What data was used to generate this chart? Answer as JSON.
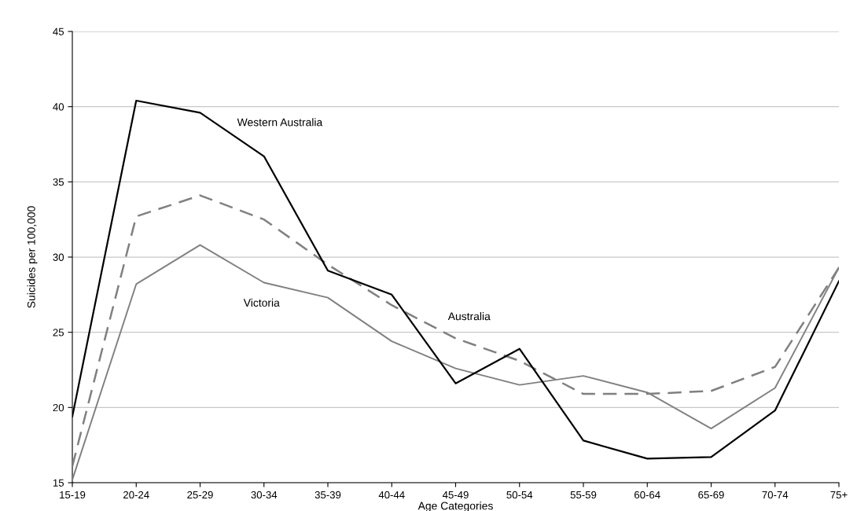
{
  "chart_data": {
    "type": "line",
    "xlabel": "Age Categories",
    "ylabel": "Suicides per 100,000",
    "categories": [
      "15-19",
      "20-24",
      "25-29",
      "30-34",
      "35-39",
      "40-44",
      "45-49",
      "50-54",
      "55-59",
      "60-64",
      "65-69",
      "70-74",
      "75+"
    ],
    "series": [
      {
        "name": "Western Australia",
        "color": "#000000",
        "line_style": "solid",
        "values": [
          19.4,
          40.4,
          39.6,
          36.7,
          29.1,
          27.5,
          21.6,
          23.9,
          17.8,
          16.6,
          16.7,
          19.8,
          28.4
        ]
      },
      {
        "name": "Australia",
        "color": "#808080",
        "line_style": "dashed",
        "values": [
          16.1,
          32.7,
          34.1,
          32.5,
          29.5,
          26.8,
          24.6,
          23.1,
          20.9,
          20.9,
          21.1,
          22.7,
          29.3
        ]
      },
      {
        "name": "Victoria",
        "color": "#808080",
        "line_style": "solid",
        "values": [
          15.2,
          28.2,
          30.8,
          28.3,
          27.3,
          24.4,
          22.6,
          21.5,
          22.1,
          21.0,
          18.6,
          21.3,
          29.3
        ]
      }
    ],
    "ylim": [
      15,
      45
    ],
    "yticks": [
      15,
      20,
      25,
      30,
      35,
      40,
      45
    ],
    "grid": "y",
    "legend": false,
    "marker": "none"
  }
}
